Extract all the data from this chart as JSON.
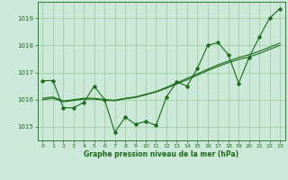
{
  "x": [
    0,
    1,
    2,
    3,
    4,
    5,
    6,
    7,
    8,
    9,
    10,
    11,
    12,
    13,
    14,
    15,
    16,
    17,
    18,
    19,
    20,
    21,
    22,
    23
  ],
  "y_main": [
    1016.7,
    1016.7,
    1015.7,
    1015.7,
    1015.9,
    1016.5,
    1016.0,
    1014.8,
    1015.35,
    1015.1,
    1015.2,
    1015.05,
    1016.1,
    1016.65,
    1016.5,
    1017.15,
    1018.0,
    1018.1,
    1017.65,
    1016.6,
    1017.55,
    1018.3,
    1019.0,
    1019.35
  ],
  "y_trend1": [
    1016.05,
    1016.1,
    1015.95,
    1016.0,
    1016.05,
    1016.05,
    1016.0,
    1015.98,
    1016.05,
    1016.1,
    1016.2,
    1016.3,
    1016.45,
    1016.62,
    1016.78,
    1016.95,
    1017.12,
    1017.28,
    1017.42,
    1017.55,
    1017.65,
    1017.78,
    1017.93,
    1018.08
  ],
  "y_trend2": [
    1016.0,
    1016.05,
    1015.92,
    1015.97,
    1016.02,
    1016.02,
    1015.98,
    1015.96,
    1016.03,
    1016.08,
    1016.18,
    1016.28,
    1016.42,
    1016.58,
    1016.73,
    1016.9,
    1017.07,
    1017.22,
    1017.36,
    1017.48,
    1017.57,
    1017.7,
    1017.85,
    1018.0
  ],
  "line_color": "#1a6b1a",
  "bg_color": "#cce8d8",
  "grid_color": "#99cc99",
  "text_color": "#1a6b1a",
  "ylabel_ticks": [
    1015,
    1016,
    1017,
    1018,
    1019
  ],
  "xlabel": "Graphe pression niveau de la mer (hPa)",
  "xlim": [
    -0.5,
    23.5
  ],
  "ylim": [
    1014.5,
    1019.6
  ]
}
